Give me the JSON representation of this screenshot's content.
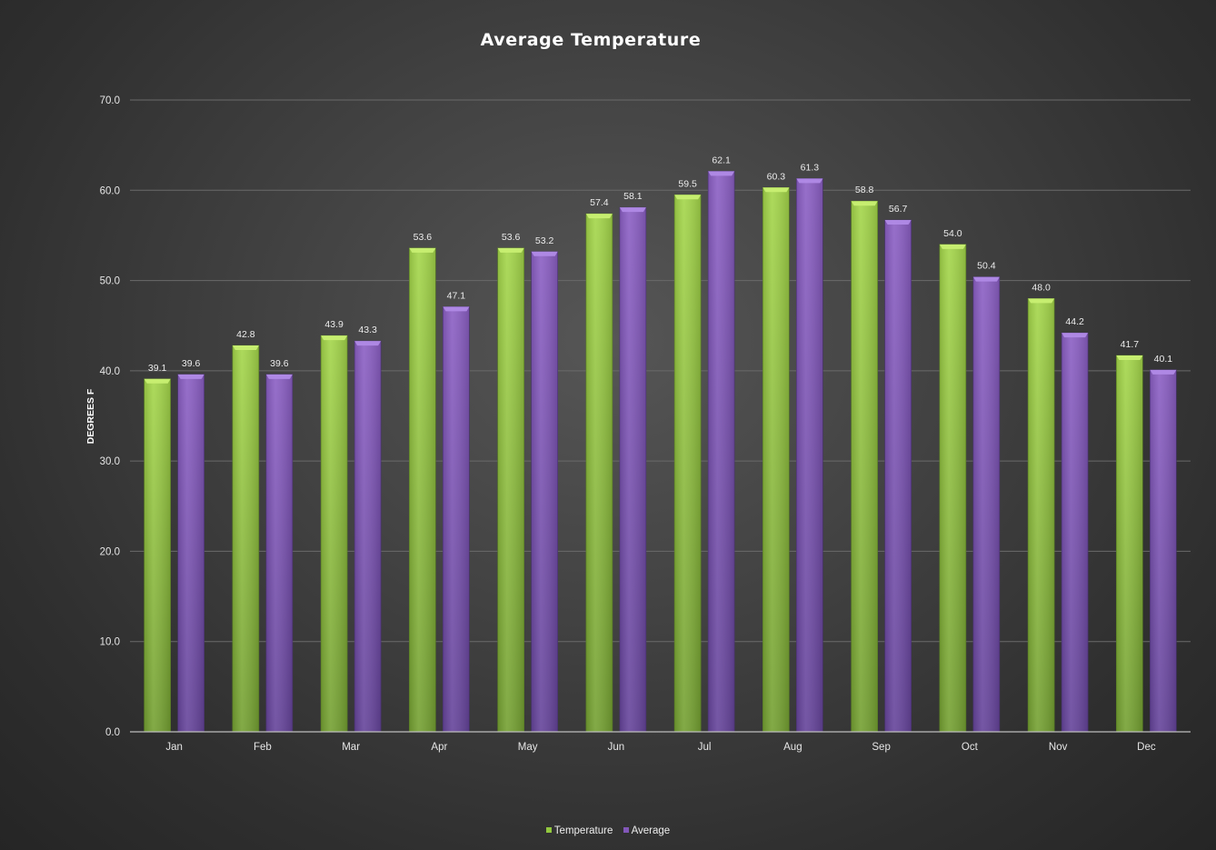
{
  "chart_data": {
    "type": "bar",
    "title": "Average Temperature",
    "xlabel": "",
    "ylabel": "DEGREES F",
    "ylim": [
      0,
      70
    ],
    "yticks": [
      "0.0",
      "10.0",
      "20.0",
      "30.0",
      "40.0",
      "50.0",
      "60.0",
      "70.0"
    ],
    "grid": true,
    "legend_position": "bottom",
    "categories": [
      "Jan",
      "Feb",
      "Mar",
      "Apr",
      "May",
      "Jun",
      "Jul",
      "Aug",
      "Sep",
      "Oct",
      "Nov",
      "Dec"
    ],
    "series": [
      {
        "name": "Temperature",
        "color": "#92c83e",
        "values": [
          39.1,
          42.8,
          43.9,
          53.6,
          53.6,
          57.4,
          59.5,
          60.3,
          58.8,
          54.0,
          48.0,
          41.7
        ],
        "labels": [
          "39.1",
          "42.8",
          "43.9",
          "53.6",
          "53.6",
          "57.4",
          "59.5",
          "60.3",
          "58.8",
          "54.0",
          "48.0",
          "41.7"
        ]
      },
      {
        "name": "Average",
        "color": "#8257b8",
        "values": [
          39.6,
          39.6,
          43.3,
          47.1,
          53.2,
          58.1,
          62.1,
          61.3,
          56.7,
          50.4,
          44.2,
          40.1
        ],
        "labels": [
          "39.6",
          "39.6",
          "43.3",
          "47.1",
          "53.2",
          "58.1",
          "62.1",
          "61.3",
          "56.7",
          "50.4",
          "44.2",
          "40.1"
        ]
      }
    ]
  }
}
